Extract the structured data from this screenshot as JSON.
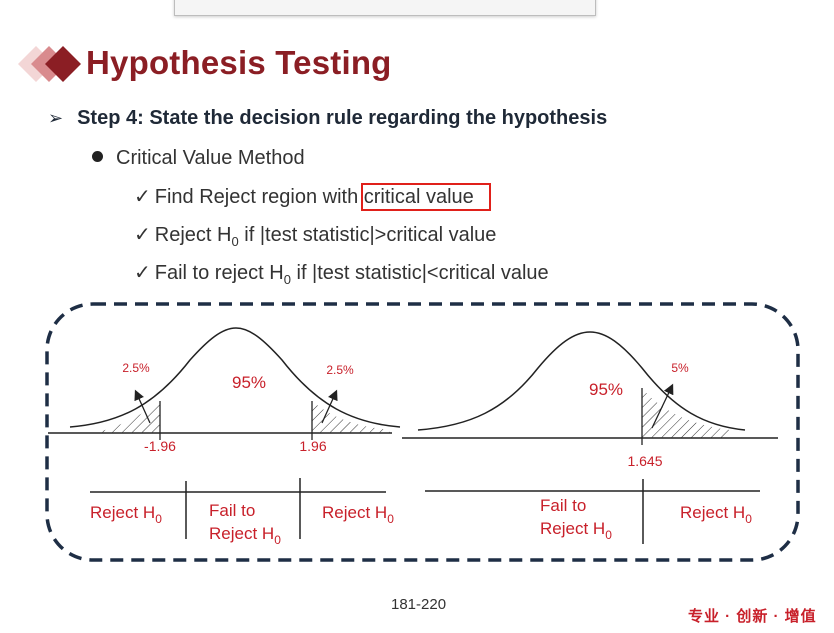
{
  "window": {
    "title": ""
  },
  "slide": {
    "title": "Hypothesis Testing",
    "step": "Step 4: State the decision rule regarding the hypothesis",
    "method": "Critical Value Method",
    "items": {
      "find_prefix": "Find Reject region with ",
      "find_highlight": "critical value",
      "reject_prefix": "Reject H",
      "reject_sub": "0",
      "reject_suffix": " if |test statistic|>critical value",
      "fail_prefix": "Fail to reject H",
      "fail_sub": "0",
      "fail_suffix": " if |test statistic|<critical value"
    },
    "check_glyph": "✓",
    "step_glyph": "➢"
  },
  "diagram": {
    "left": {
      "center_label": "95%",
      "left_tail_label": "2.5%",
      "right_tail_label": "2.5%",
      "left_critical": "-1.96",
      "right_critical": "1.96",
      "regions": {
        "left_reject": "Reject H",
        "left_reject_sub": "0",
        "fail_line1": "Fail to",
        "fail_line2": "Reject H",
        "fail_sub": "0",
        "right_reject": "Reject H",
        "right_reject_sub": "0"
      }
    },
    "right": {
      "center_label": "95%",
      "tail_label": "5%",
      "critical": "1.645",
      "regions": {
        "fail_line1": "Fail to",
        "fail_line2": "Reject H",
        "fail_sub": "0",
        "reject": "Reject H",
        "reject_sub": "0"
      }
    }
  },
  "footer": {
    "page": "181-220",
    "brand": "专业 · 创新 · 增值"
  },
  "colors": {
    "title": "#8b1e24",
    "accent_red": "#c8202a",
    "dash_border": "#1e2e45",
    "highlight_box": "#e0201a"
  },
  "icons": {
    "logo": "diamond-stack-icon",
    "bullet": "dot-icon",
    "check": "check-icon",
    "arrow": "arrow-bullet-icon"
  }
}
